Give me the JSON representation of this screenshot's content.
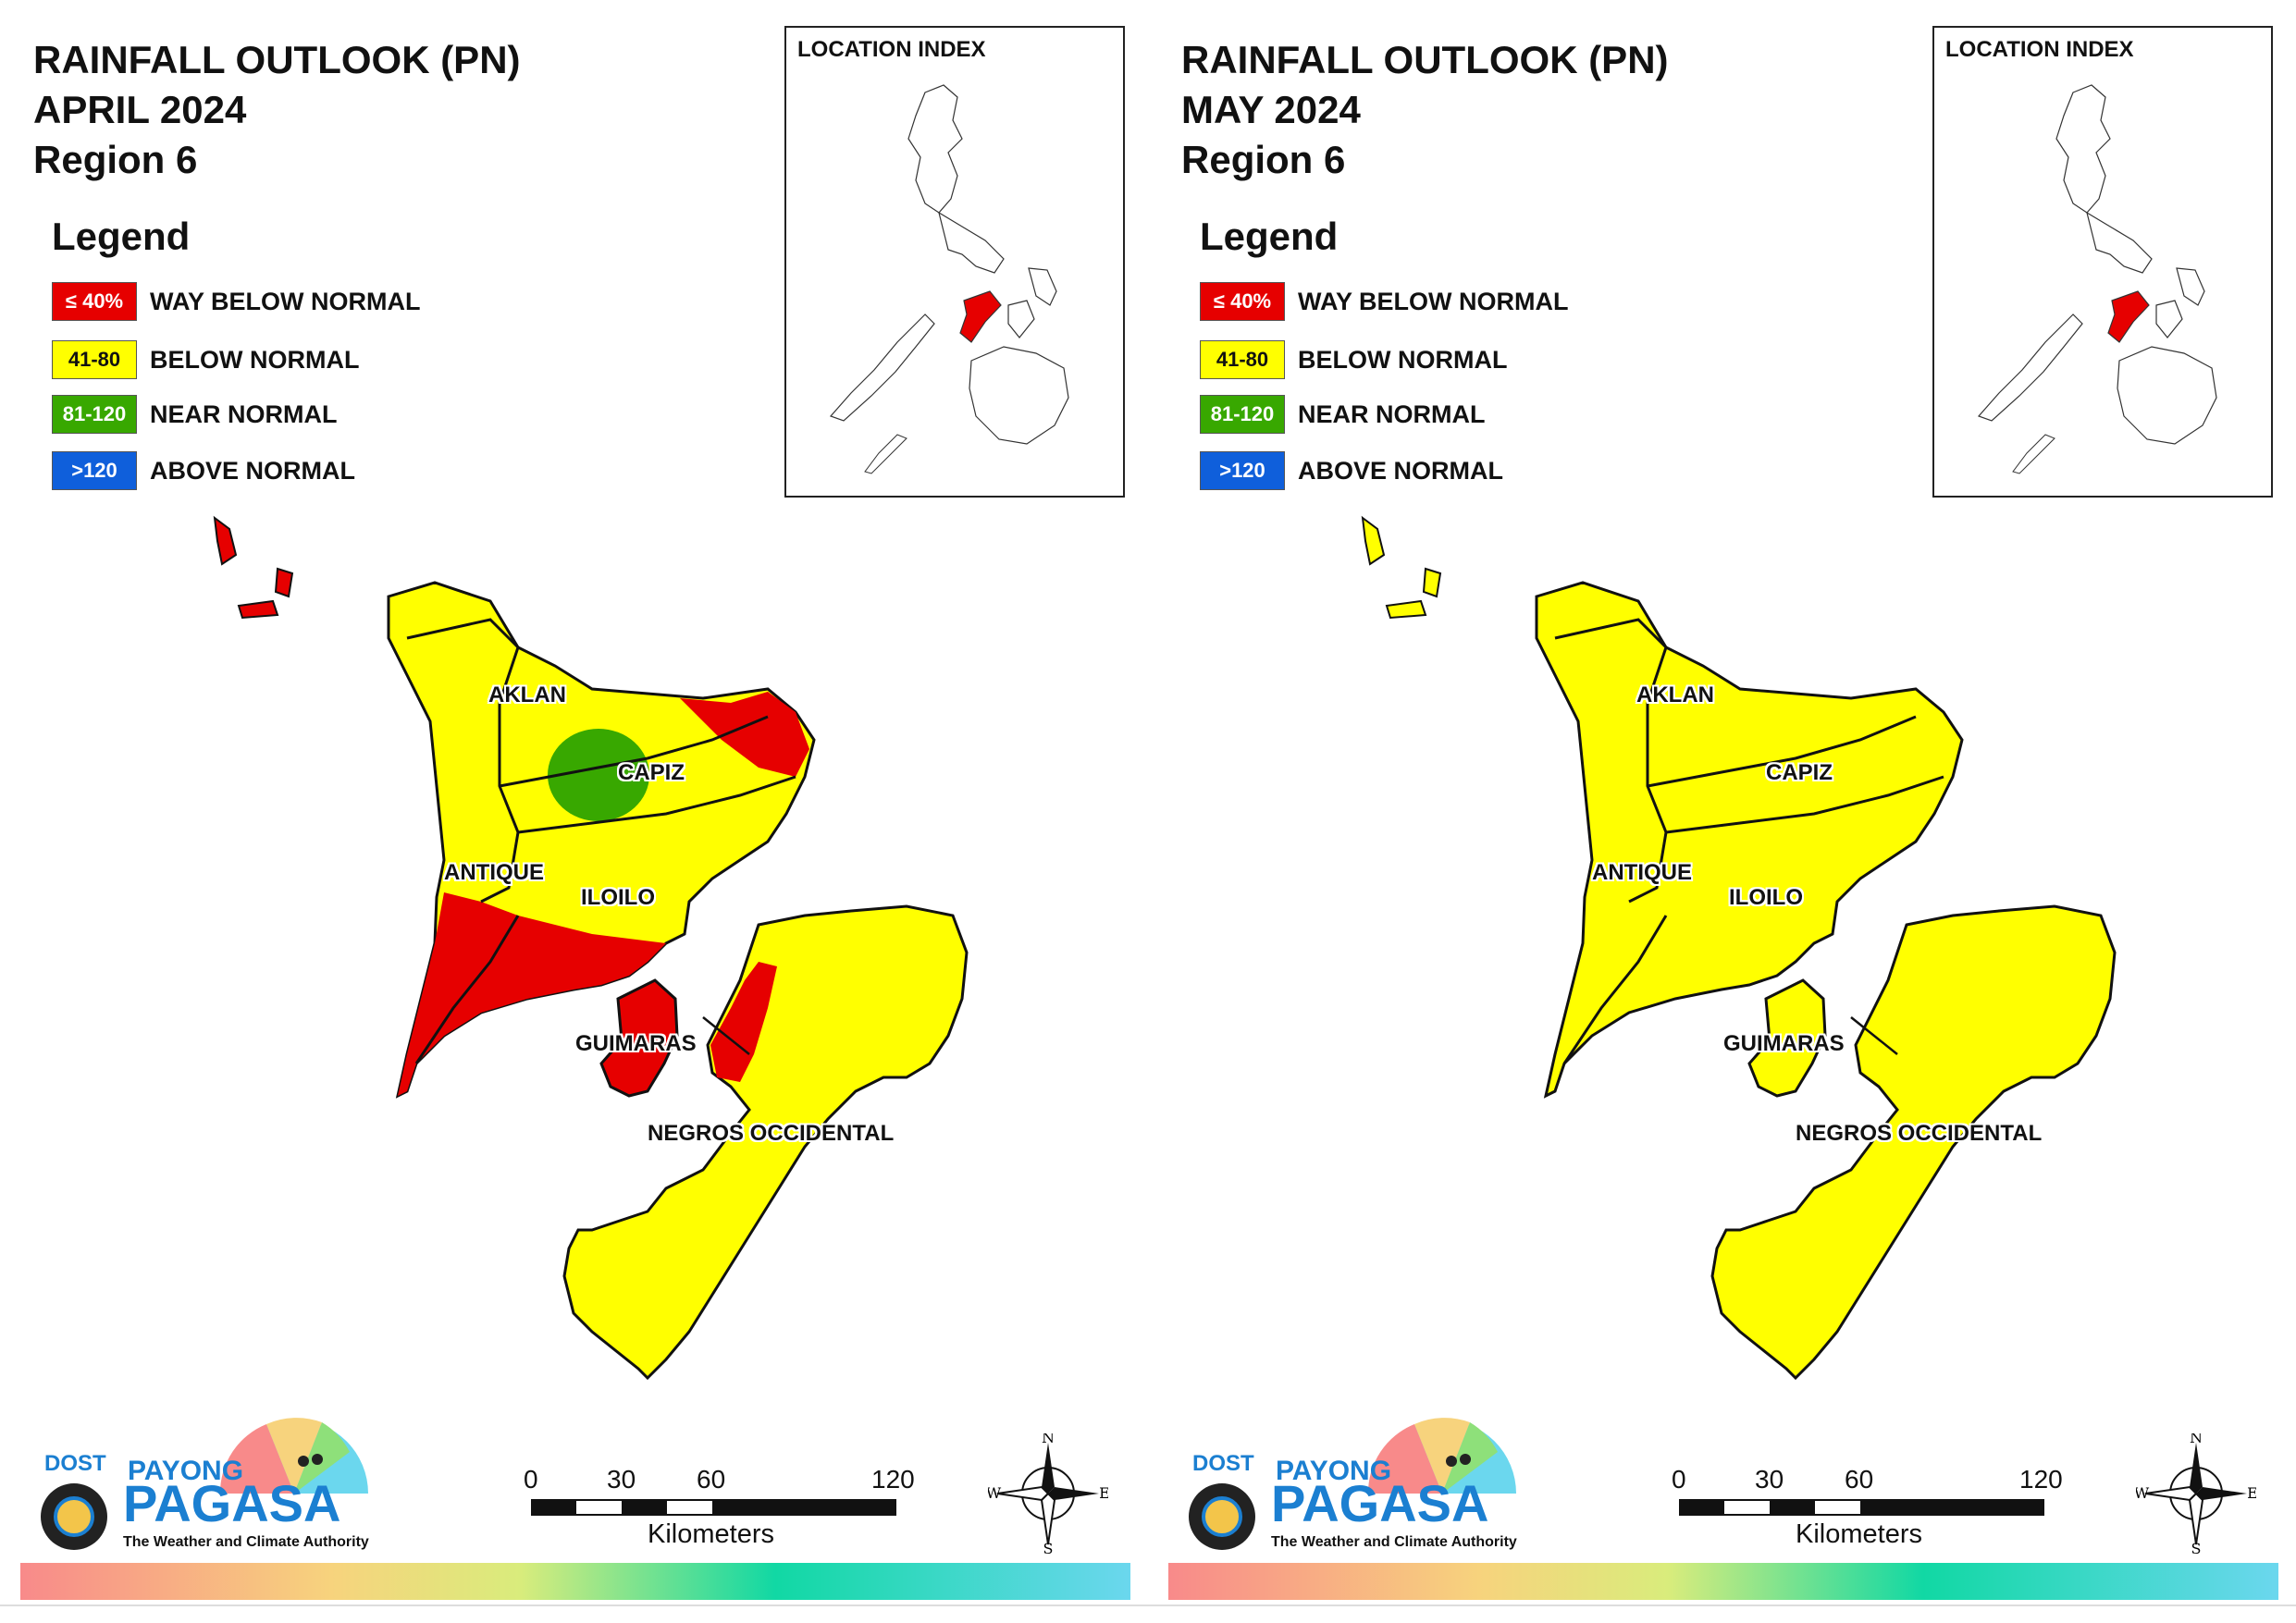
{
  "colors": {
    "way_below": "#e60000",
    "below": "#ffff00",
    "near": "#38a800",
    "above": "#0f5fdb",
    "outline": "#111111"
  },
  "panels": [
    {
      "title_line1": "RAINFALL OUTLOOK (PN)",
      "title_line2": "APRIL 2024",
      "title_line3": "Region 6",
      "legend": {
        "heading": "Legend",
        "items": [
          {
            "swatch": "≤ 40%",
            "label": "WAY BELOW NORMAL"
          },
          {
            "swatch": "41-80",
            "label": "BELOW NORMAL"
          },
          {
            "swatch": "81-120",
            "label": "NEAR NORMAL"
          },
          {
            "swatch": ">120",
            "label": "ABOVE NORMAL"
          }
        ]
      },
      "inset_title": "LOCATION INDEX",
      "provinces": {
        "aklan": "AKLAN",
        "capiz": "CAPIZ",
        "antique": "ANTIQUE",
        "iloilo": "ILOILO",
        "guimaras": "GUIMARAS",
        "negros": "NEGROS OCCIDENTAL"
      },
      "scale": {
        "t0": "0",
        "t1": "30",
        "t2": "60",
        "t3": "120",
        "unit": "Kilometers"
      },
      "compass": {
        "n": "N",
        "e": "E",
        "s": "S",
        "w": "W"
      },
      "logo": {
        "dost": "DOST",
        "payong": "PAYONG",
        "pagasa": "PAGASA",
        "tagline": "The Weather and Climate Authority"
      }
    },
    {
      "title_line1": "RAINFALL OUTLOOK (PN)",
      "title_line2": "MAY 2024",
      "title_line3": "Region 6",
      "legend": {
        "heading": "Legend",
        "items": [
          {
            "swatch": "≤ 40%",
            "label": "WAY BELOW NORMAL"
          },
          {
            "swatch": "41-80",
            "label": "BELOW NORMAL"
          },
          {
            "swatch": "81-120",
            "label": "NEAR NORMAL"
          },
          {
            "swatch": ">120",
            "label": "ABOVE NORMAL"
          }
        ]
      },
      "inset_title": "LOCATION INDEX",
      "provinces": {
        "aklan": "AKLAN",
        "capiz": "CAPIZ",
        "antique": "ANTIQUE",
        "iloilo": "ILOILO",
        "guimaras": "GUIMARAS",
        "negros": "NEGROS OCCIDENTAL"
      },
      "scale": {
        "t0": "0",
        "t1": "30",
        "t2": "60",
        "t3": "120",
        "unit": "Kilometers"
      },
      "compass": {
        "n": "N",
        "e": "E",
        "s": "S",
        "w": "W"
      },
      "logo": {
        "dost": "DOST",
        "payong": "PAYONG",
        "pagasa": "PAGASA",
        "tagline": "The Weather and Climate Authority"
      }
    }
  ]
}
